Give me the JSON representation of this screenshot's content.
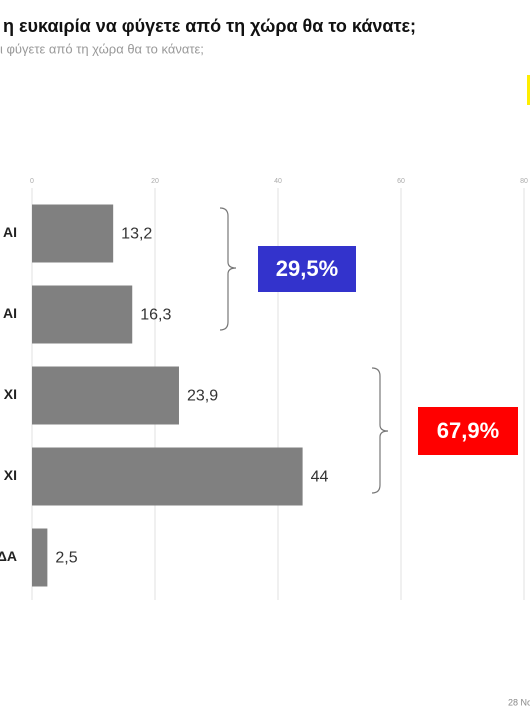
{
  "chart_data": {
    "type": "hbar",
    "title": "η ευκαιρία να φύγετε από τη χώρα θα το κάνατε;",
    "subtitle": "ι φύγετε από τη χώρα θα το κάνατε;",
    "categories": [
      "ΑΙ",
      "ΑΙ",
      "ΧΙ",
      "ΧΙ",
      "ΔΑ"
    ],
    "values": [
      13.2,
      16.3,
      23.9,
      44,
      2.5
    ],
    "value_labels": [
      "13,2",
      "16,3",
      "23,9",
      "44",
      "2,5"
    ],
    "color": "#808080",
    "xlim": [
      0,
      80
    ],
    "xticks": [
      0,
      20,
      40,
      60,
      80
    ],
    "grid": true,
    "annotations": [
      {
        "text": "29,5%",
        "color": "#3333cc"
      },
      {
        "text": "67,9%",
        "color": "#ff0000"
      }
    ],
    "footer": "28 Νο"
  }
}
